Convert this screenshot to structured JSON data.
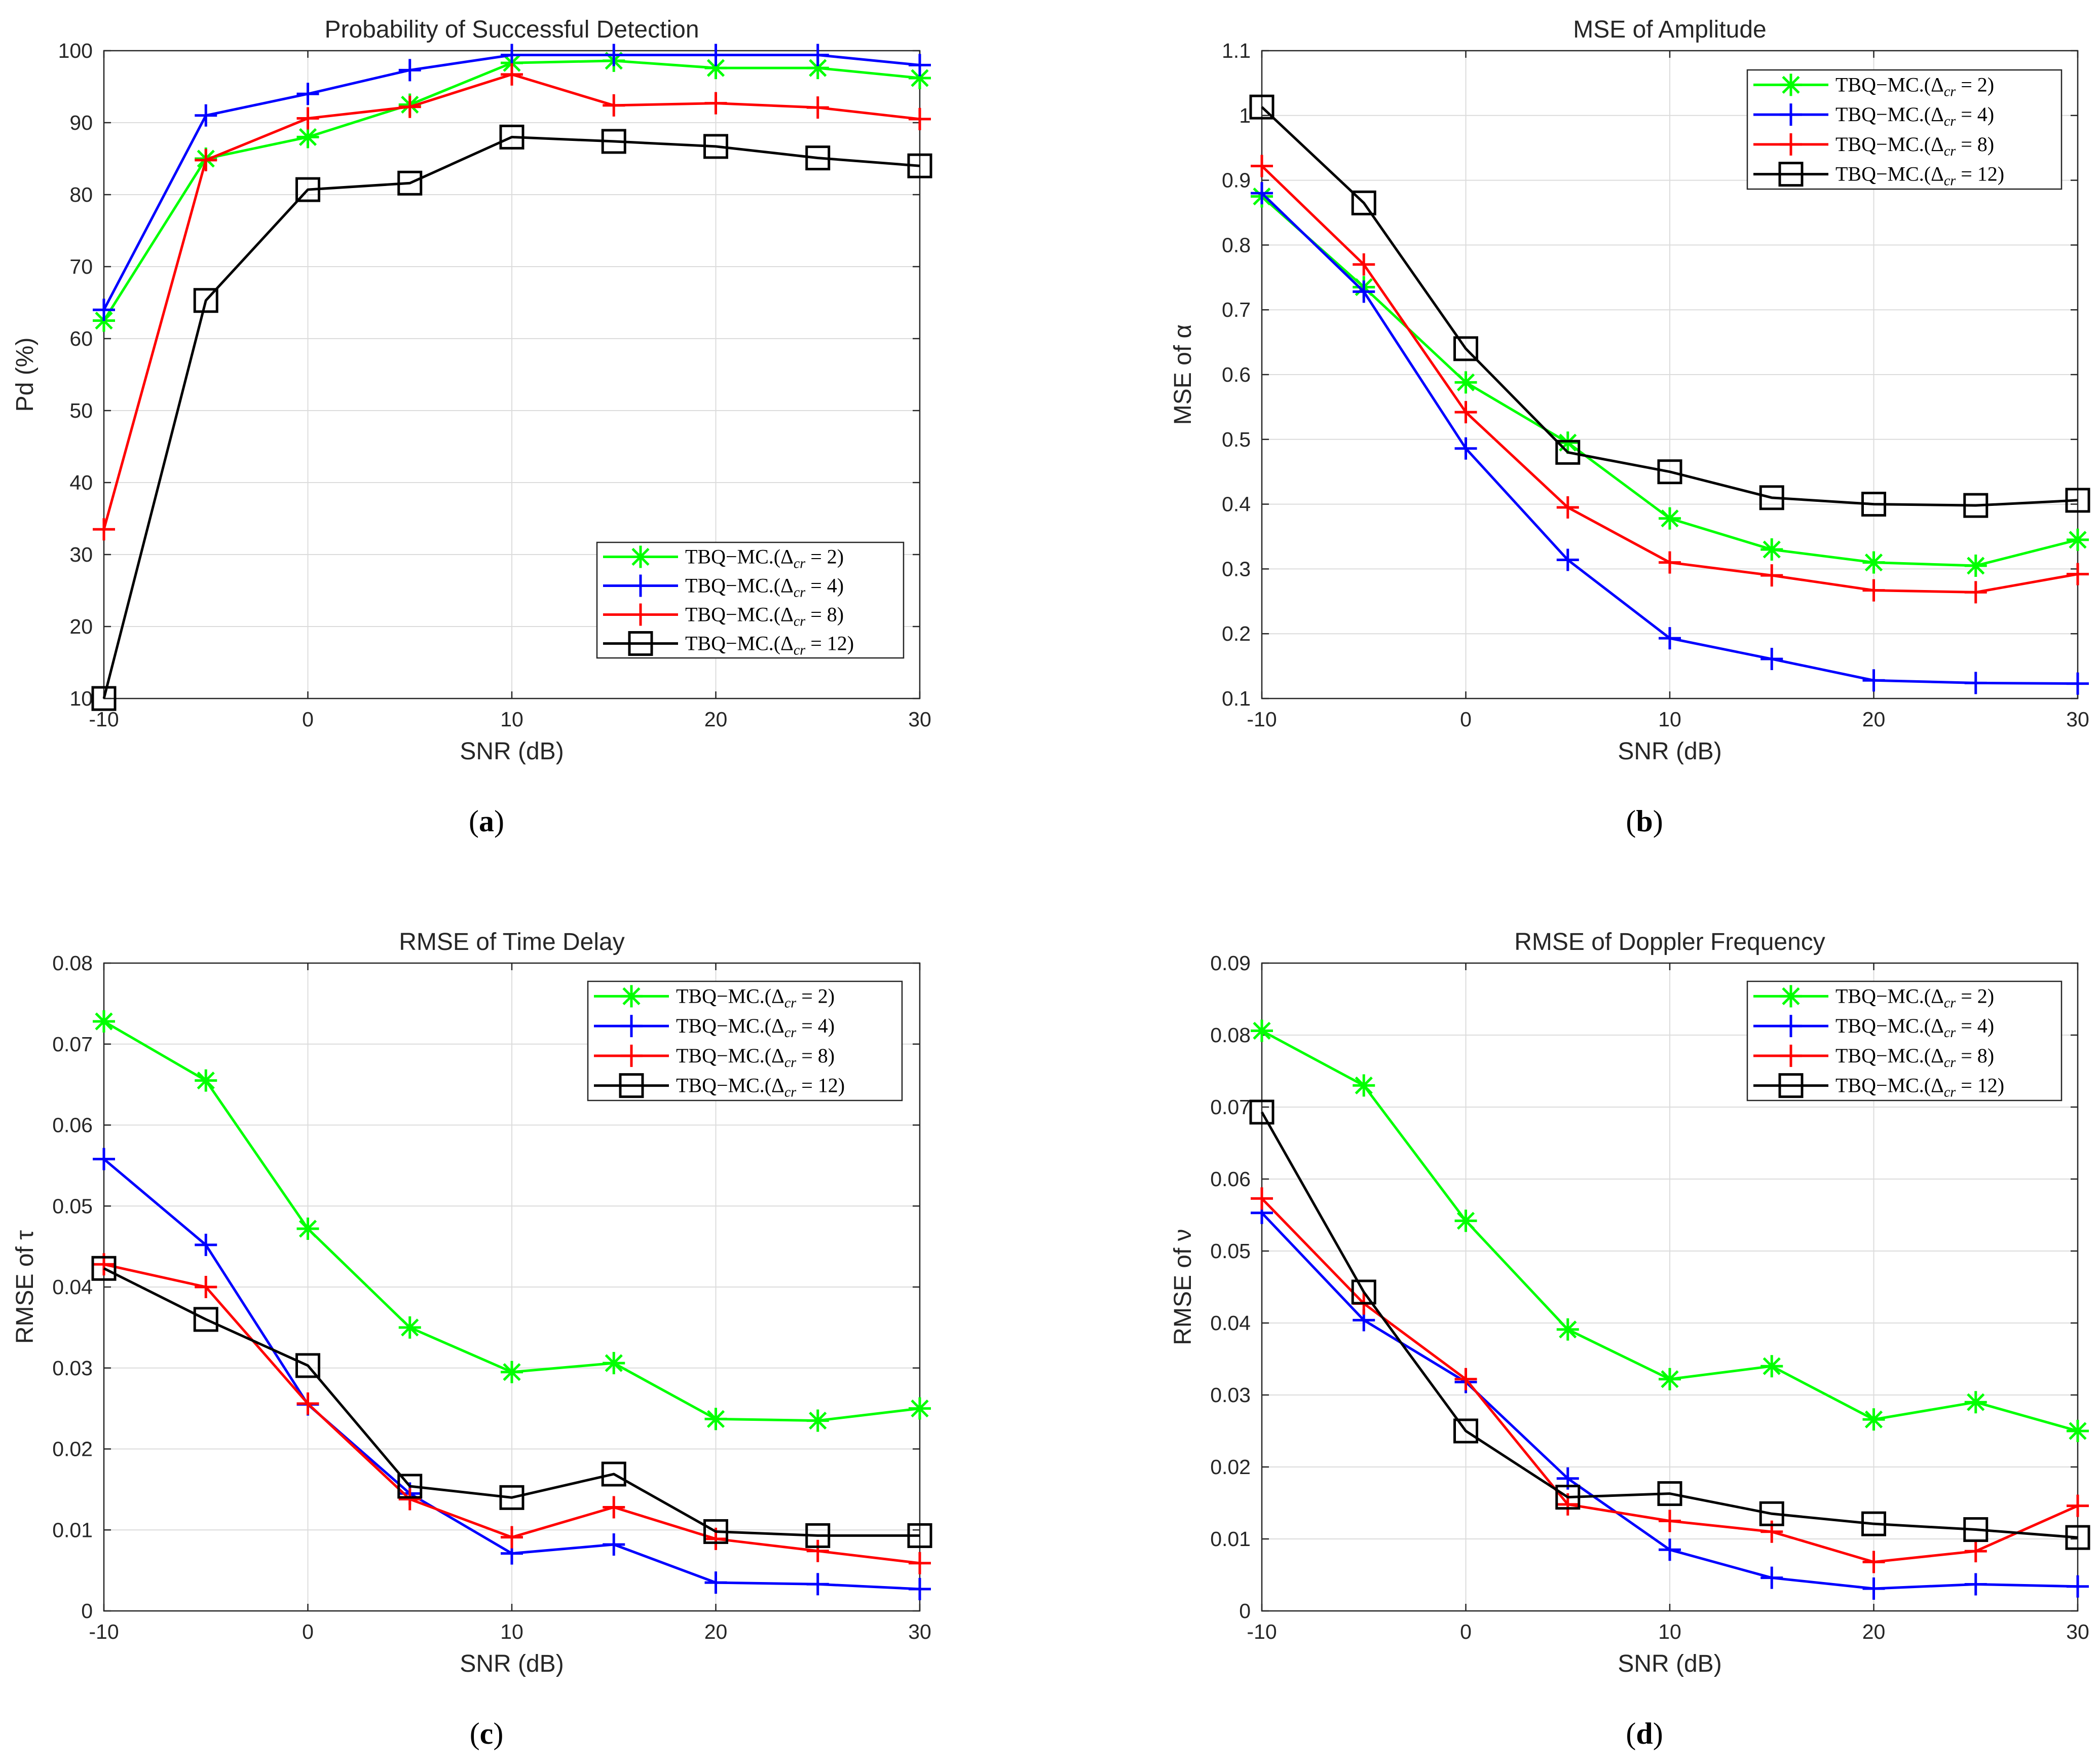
{
  "chart_data": [
    {
      "type": "line",
      "panel": "a",
      "caption": "(a)",
      "title": "Probability of Successful Detection",
      "xlabel": "SNR (dB)",
      "ylabel": "Pd (%)",
      "xlim": [
        -10,
        30
      ],
      "ylim": [
        10,
        100
      ],
      "xticks": [
        -10,
        0,
        10,
        20,
        30
      ],
      "xtick_labels": [
        "-10",
        "0",
        "10",
        "20",
        "30"
      ],
      "yticks": [
        10,
        20,
        30,
        40,
        50,
        60,
        70,
        80,
        90,
        100
      ],
      "ytick_labels": [
        "10",
        "20",
        "30",
        "40",
        "50",
        "60",
        "70",
        "80",
        "90",
        "100"
      ],
      "grid": true,
      "legend_position": "bottom-right",
      "x": [
        -10,
        -5,
        0,
        5,
        10,
        15,
        20,
        25,
        30
      ],
      "series": [
        {
          "name": "TBQ−MC.(Δcr = 2)",
          "name_main": "TBQ−MC.(Δ",
          "name_sub": "cr",
          "name_tail": " = 2)",
          "color": "#00ff00",
          "marker": "asterisk",
          "values": [
            62.5,
            85,
            88,
            92.5,
            98.3,
            98.6,
            97.6,
            97.6,
            96.2
          ]
        },
        {
          "name": "TBQ−MC.(Δcr = 4)",
          "name_main": "TBQ−MC.(Δ",
          "name_sub": "cr",
          "name_tail": " = 4)",
          "color": "#0000ff",
          "marker": "plus",
          "values": [
            64,
            91,
            94,
            97.3,
            99.4,
            99.4,
            99.4,
            99.4,
            98
          ]
        },
        {
          "name": "TBQ−MC.(Δcr = 8)",
          "name_main": "TBQ−MC.(Δ",
          "name_sub": "cr",
          "name_tail": " = 8)",
          "color": "#ff0000",
          "marker": "plus",
          "values": [
            33.5,
            84.8,
            90.6,
            92.2,
            96.7,
            92.4,
            92.7,
            92.1,
            90.5
          ]
        },
        {
          "name": "TBQ−MC.(Δcr = 12)",
          "name_main": "TBQ−MC.(Δ",
          "name_sub": "cr",
          "name_tail": " = 12)",
          "color": "#000000",
          "marker": "square",
          "values": [
            10,
            65.3,
            80.7,
            81.6,
            88,
            87.4,
            86.7,
            85.1,
            84
          ]
        }
      ]
    },
    {
      "type": "line",
      "panel": "b",
      "caption": "(b)",
      "title": "MSE of Amplitude",
      "xlabel": "SNR (dB)",
      "ylabel": "MSE of α",
      "xlim": [
        -10,
        30
      ],
      "ylim": [
        0.1,
        1.1
      ],
      "xticks": [
        -10,
        0,
        10,
        20,
        30
      ],
      "xtick_labels": [
        "-10",
        "0",
        "10",
        "20",
        "30"
      ],
      "yticks": [
        0.1,
        0.2,
        0.3,
        0.4,
        0.5,
        0.6,
        0.7,
        0.8,
        0.9,
        1.0,
        1.1
      ],
      "ytick_labels": [
        "0.1",
        "0.2",
        "0.3",
        "0.4",
        "0.5",
        "0.6",
        "0.7",
        "0.8",
        "0.9",
        "1",
        "1.1"
      ],
      "grid": true,
      "legend_position": "top-right",
      "x": [
        -10,
        -5,
        0,
        5,
        10,
        15,
        20,
        25,
        30
      ],
      "series": [
        {
          "name": "TBQ−MC.(Δcr = 2)",
          "name_main": "TBQ−MC.(Δ",
          "name_sub": "cr",
          "name_tail": " = 2)",
          "color": "#00ff00",
          "marker": "asterisk",
          "values": [
            0.875,
            0.735,
            0.588,
            0.495,
            0.378,
            0.33,
            0.31,
            0.305,
            0.345
          ]
        },
        {
          "name": "TBQ−MC.(Δcr = 4)",
          "name_main": "TBQ−MC.(Δ",
          "name_sub": "cr",
          "name_tail": " = 4)",
          "color": "#0000ff",
          "marker": "plus",
          "values": [
            0.88,
            0.728,
            0.486,
            0.314,
            0.193,
            0.161,
            0.128,
            0.124,
            0.123
          ]
        },
        {
          "name": "TBQ−MC.(Δcr = 8)",
          "name_main": "TBQ−MC.(Δ",
          "name_sub": "cr",
          "name_tail": " = 8)",
          "color": "#ff0000",
          "marker": "plus",
          "values": [
            0.922,
            0.77,
            0.542,
            0.395,
            0.31,
            0.29,
            0.267,
            0.264,
            0.292
          ]
        },
        {
          "name": "TBQ−MC.(Δcr = 12)",
          "name_main": "TBQ−MC.(Δ",
          "name_sub": "cr",
          "name_tail": " = 12)",
          "color": "#000000",
          "marker": "square",
          "values": [
            1.013,
            0.865,
            0.64,
            0.48,
            0.45,
            0.41,
            0.4,
            0.398,
            0.406
          ]
        }
      ]
    },
    {
      "type": "line",
      "panel": "c",
      "caption": "(c)",
      "title": "RMSE of Time Delay",
      "xlabel": "SNR (dB)",
      "ylabel": "RMSE of τ",
      "xlim": [
        -10,
        30
      ],
      "ylim": [
        0,
        0.08
      ],
      "xticks": [
        -10,
        0,
        10,
        20,
        30
      ],
      "xtick_labels": [
        "-10",
        "0",
        "10",
        "20",
        "30"
      ],
      "yticks": [
        0,
        0.01,
        0.02,
        0.03,
        0.04,
        0.05,
        0.06,
        0.07,
        0.08
      ],
      "ytick_labels": [
        "0",
        "0.01",
        "0.02",
        "0.03",
        "0.04",
        "0.05",
        "0.06",
        "0.07",
        "0.08"
      ],
      "grid": true,
      "legend_position": "top-right",
      "x": [
        -10,
        -5,
        0,
        5,
        10,
        15,
        20,
        25,
        30
      ],
      "series": [
        {
          "name": "TBQ−MC.(Δcr = 2)",
          "name_main": "TBQ−MC.(Δ",
          "name_sub": "cr",
          "name_tail": " = 2)",
          "color": "#00ff00",
          "marker": "asterisk",
          "values": [
            0.0728,
            0.0655,
            0.0472,
            0.035,
            0.0295,
            0.0306,
            0.0237,
            0.0235,
            0.025
          ]
        },
        {
          "name": "TBQ−MC.(Δcr = 4)",
          "name_main": "TBQ−MC.(Δ",
          "name_sub": "cr",
          "name_tail": " = 4)",
          "color": "#0000ff",
          "marker": "plus",
          "values": [
            0.0558,
            0.0452,
            0.0255,
            0.0145,
            0.0071,
            0.0082,
            0.0035,
            0.0033,
            0.0027
          ]
        },
        {
          "name": "TBQ−MC.(Δcr = 8)",
          "name_main": "TBQ−MC.(Δ",
          "name_sub": "cr",
          "name_tail": " = 8)",
          "color": "#ff0000",
          "marker": "plus",
          "values": [
            0.0428,
            0.04,
            0.0256,
            0.0138,
            0.0091,
            0.0128,
            0.0089,
            0.0074,
            0.0059
          ]
        },
        {
          "name": "TBQ−MC.(Δcr = 12)",
          "name_main": "TBQ−MC.(Δ",
          "name_sub": "cr",
          "name_tail": " = 12)",
          "color": "#000000",
          "marker": "square",
          "values": [
            0.0423,
            0.036,
            0.0303,
            0.0154,
            0.014,
            0.0169,
            0.0098,
            0.0093,
            0.0093
          ]
        }
      ]
    },
    {
      "type": "line",
      "panel": "d",
      "caption": "(d)",
      "title": "RMSE of Doppler Frequency",
      "xlabel": "SNR (dB)",
      "ylabel": "RMSE of ν",
      "xlim": [
        -10,
        30
      ],
      "ylim": [
        0,
        0.09
      ],
      "xticks": [
        -10,
        0,
        10,
        20,
        30
      ],
      "xtick_labels": [
        "-10",
        "0",
        "10",
        "20",
        "30"
      ],
      "yticks": [
        0,
        0.01,
        0.02,
        0.03,
        0.04,
        0.05,
        0.06,
        0.07,
        0.08,
        0.09
      ],
      "ytick_labels": [
        "0",
        "0.01",
        "0.02",
        "0.03",
        "0.04",
        "0.05",
        "0.06",
        "0.07",
        "0.08",
        "0.09"
      ],
      "grid": true,
      "legend_position": "top-right",
      "x": [
        -10,
        -5,
        0,
        5,
        10,
        15,
        20,
        25,
        30
      ],
      "series": [
        {
          "name": "TBQ−MC.(Δcr = 2)",
          "name_main": "TBQ−MC.(Δ",
          "name_sub": "cr",
          "name_tail": " = 2)",
          "color": "#00ff00",
          "marker": "asterisk",
          "values": [
            0.0806,
            0.073,
            0.0542,
            0.0391,
            0.0322,
            0.034,
            0.0266,
            0.029,
            0.025
          ]
        },
        {
          "name": "TBQ−MC.(Δcr = 4)",
          "name_main": "TBQ−MC.(Δ",
          "name_sub": "cr",
          "name_tail": " = 4)",
          "color": "#0000ff",
          "marker": "plus",
          "values": [
            0.0553,
            0.0404,
            0.0318,
            0.0184,
            0.0085,
            0.0046,
            0.0031,
            0.0037,
            0.0034
          ]
        },
        {
          "name": "TBQ−MC.(Δcr = 8)",
          "name_main": "TBQ−MC.(Δ",
          "name_sub": "cr",
          "name_tail": " = 8)",
          "color": "#ff0000",
          "marker": "plus",
          "values": [
            0.0573,
            0.0427,
            0.0322,
            0.0148,
            0.0125,
            0.011,
            0.0068,
            0.0083,
            0.0146
          ]
        },
        {
          "name": "TBQ−MC.(Δcr = 12)",
          "name_main": "TBQ−MC.(Δ",
          "name_sub": "cr",
          "name_tail": " = 12)",
          "color": "#000000",
          "marker": "square",
          "values": [
            0.0693,
            0.0443,
            0.025,
            0.0158,
            0.0163,
            0.0135,
            0.0121,
            0.0113,
            0.0102
          ]
        }
      ]
    }
  ]
}
